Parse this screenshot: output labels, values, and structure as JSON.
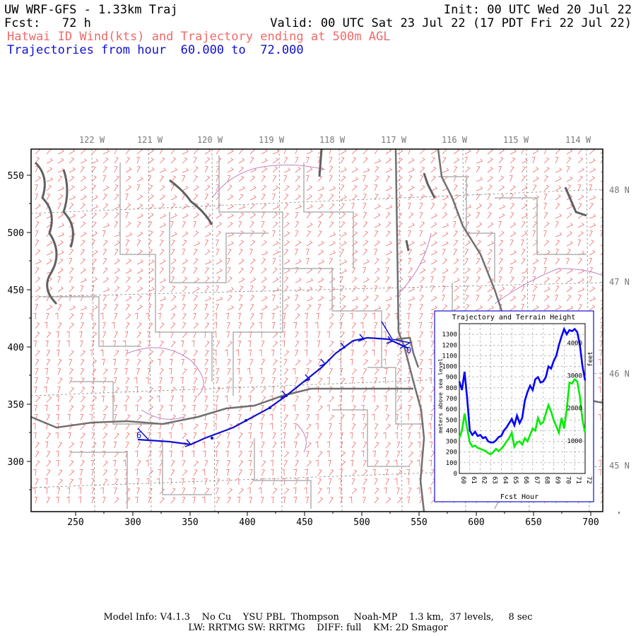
{
  "header": {
    "title": "UW WRF-GFS - 1.33km Traj",
    "init": "Init: 00 UTC Wed 20 Jul 22",
    "fcst": "Fcst:   72 h",
    "valid": "Valid: 00 UTC Sat 23 Jul 22 (17 PDT Fri 22 Jul 22)",
    "field": "Hatwai ID Wind(kts) and Trajectory ending at 500m AGL",
    "traj_range": "Trajectories from hour  60.000 to  72.000"
  },
  "map": {
    "lon_labels": [
      "122 W",
      "121 W",
      "120 W",
      "119 W",
      "118 W",
      "117 W",
      "116 W",
      "115 W",
      "114 W"
    ],
    "lat_labels": [
      "48 N",
      "47 N",
      "46 N",
      "45 N"
    ],
    "x_ticks": [
      "250",
      "300",
      "350",
      "400",
      "450",
      "500",
      "550",
      "600",
      "650",
      "700"
    ],
    "y_ticks": [
      "550",
      "500",
      "450",
      "400",
      "350",
      "300"
    ],
    "start_marker": "6",
    "end_marker": "0",
    "colors": {
      "trajectory": "#1010d0",
      "wind_barbs": "#f06a6a",
      "state_borders": "#707070",
      "county_lines": "#b0b0b0",
      "coast": "#606060",
      "rivers": "#c080c0"
    }
  },
  "inset": {
    "title": "Trajectory and Terrain Height",
    "xlabel": "Fcst Hour",
    "ylabel_left": "meters above sea level",
    "ylabel_right": "feet",
    "x_ticks": [
      "60",
      "61",
      "62",
      "63",
      "64",
      "65",
      "66",
      "67",
      "68",
      "69",
      "70",
      "71",
      "72"
    ],
    "y_ticks": [
      "0",
      "100",
      "200",
      "300",
      "400",
      "500",
      "600",
      "700",
      "800",
      "900",
      "1000",
      "1100",
      "1200",
      "1300"
    ],
    "feet_ticks": [
      "1000",
      "2000",
      "3000",
      "4000"
    ]
  },
  "chart_data": {
    "type": "line",
    "title": "Trajectory and Terrain Height",
    "xlabel": "Fcst Hour",
    "ylabel": "meters above sea level",
    "xlim": [
      60,
      72
    ],
    "ylim": [
      0,
      1400
    ],
    "grid": true,
    "x": [
      60,
      60.25,
      60.5,
      60.75,
      61,
      61.25,
      61.5,
      61.75,
      62,
      62.25,
      62.5,
      62.75,
      63,
      63.25,
      63.5,
      63.75,
      64,
      64.25,
      64.5,
      64.75,
      65,
      65.25,
      65.5,
      65.75,
      66,
      66.25,
      66.5,
      66.75,
      67,
      67.25,
      67.5,
      67.75,
      68,
      68.25,
      68.5,
      68.75,
      69,
      69.25,
      69.5,
      69.75,
      70,
      70.25,
      70.5,
      70.75,
      71,
      71.25,
      71.5,
      71.75,
      72
    ],
    "series": [
      {
        "color": "#0000ff",
        "values": [
          860,
          780,
          950,
          700,
          400,
          360,
          390,
          350,
          360,
          330,
          340,
          300,
          290,
          290,
          310,
          340,
          350,
          400,
          430,
          470,
          510,
          450,
          540,
          470,
          520,
          680,
          760,
          820,
          780,
          880,
          900,
          850,
          860,
          900,
          1000,
          980,
          1050,
          1100,
          1200,
          1280,
          1350,
          1300,
          1340,
          1330,
          1350,
          1320,
          1200,
          1000,
          870
        ]
      },
      {
        "color": "#00ee00",
        "values": [
          330,
          400,
          560,
          420,
          290,
          250,
          260,
          240,
          230,
          220,
          210,
          190,
          180,
          200,
          230,
          210,
          230,
          260,
          300,
          330,
          380,
          250,
          290,
          300,
          270,
          330,
          300,
          360,
          420,
          400,
          520,
          460,
          480,
          560,
          640,
          580,
          500,
          440,
          380,
          520,
          420,
          600,
          850,
          840,
          880,
          860,
          720,
          500,
          380
        ]
      }
    ]
  }
}
